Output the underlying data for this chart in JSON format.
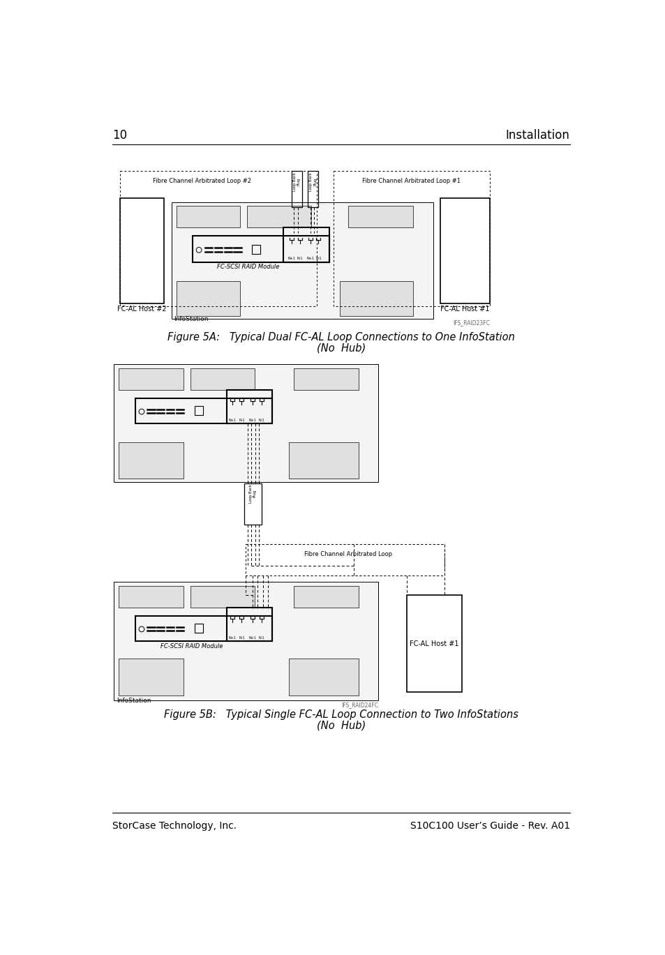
{
  "page_number": "10",
  "page_header_right": "Installation",
  "footer_left": "StorCase Technology, Inc.",
  "footer_right": "S10C100 User’s Guide - Rev. A01",
  "fig5a_caption_line1": "Figure 5A:   Typical Dual FC-AL Loop Connections to One InfoStation",
  "fig5a_caption_line2": "(No  Hub)",
  "fig5b_caption_line1": "Figure 5B:   Typical Single FC-AL Loop Connection to Two InfoStations",
  "fig5b_caption_line2": "(No  Hub)",
  "fig5a_label_loop2": "Fibre Channel Arbitrated Loop #2",
  "fig5a_label_loop1": "Fibre Channel Arbitrated Loop #1",
  "fig5a_label_host2": "FC-AL Host #2",
  "fig5a_label_host1": "FC-AL Host #1",
  "fig5a_label_infostation": "InfoStation",
  "fig5a_label_fcscsi": "FC-SCSI RAID Module",
  "fig5a_watermark": "IFS_RAID23FC",
  "fig5b_label_loop": "Fibre Channel Arbitrated Loop",
  "fig5b_label_host1": "FC-AL Host #1",
  "fig5b_label_infostation": "InfoStation",
  "fig5b_label_fcscsi": "FC-SCSI RAID Module",
  "fig5b_watermark": "IFS_RAID24FC",
  "background_color": "#ffffff",
  "line_color": "#000000"
}
